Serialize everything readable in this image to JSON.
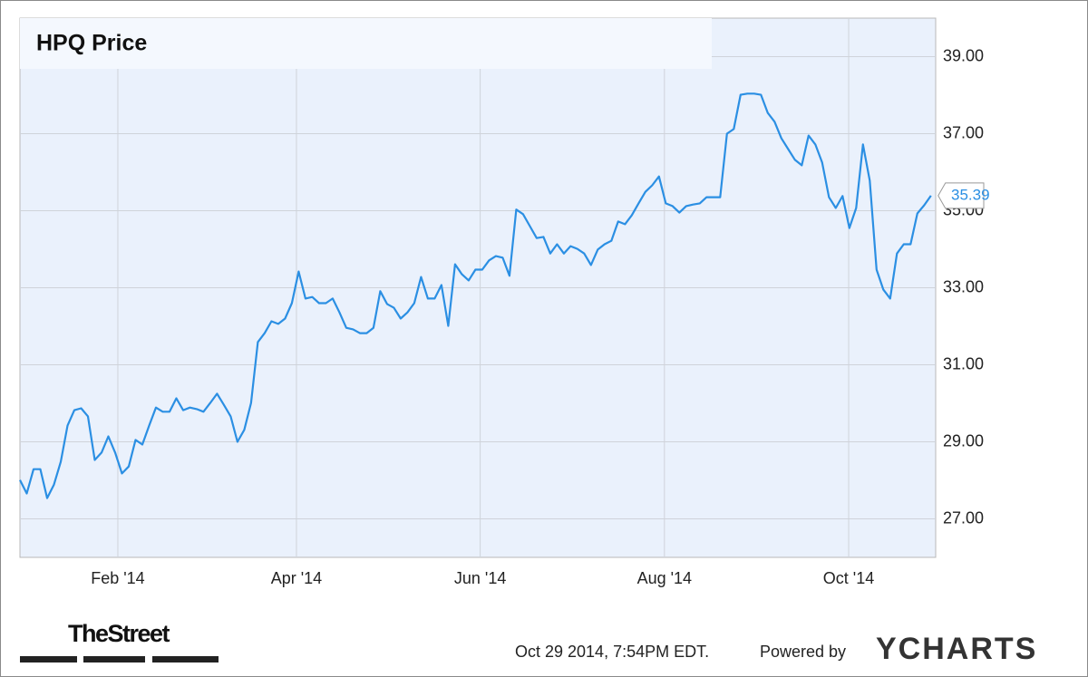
{
  "chart_data": {
    "type": "line",
    "title": "HPQ Price",
    "series": [
      {
        "name": "HPQ",
        "color": "#2b8fe3",
        "values": [
          28.01,
          27.66,
          28.29,
          28.29,
          27.54,
          27.89,
          28.48,
          29.42,
          29.82,
          29.87,
          29.66,
          28.53,
          28.72,
          29.14,
          28.72,
          28.18,
          28.36,
          29.05,
          28.93,
          29.42,
          29.89,
          29.78,
          29.78,
          30.13,
          29.82,
          29.89,
          29.85,
          29.78,
          30.01,
          30.25,
          29.96,
          29.66,
          29.0,
          29.31,
          30.01,
          31.59,
          31.82,
          32.13,
          32.06,
          32.2,
          32.6,
          33.42,
          32.72,
          32.76,
          32.6,
          32.6,
          32.72,
          32.36,
          31.96,
          31.92,
          31.82,
          31.82,
          31.96,
          32.91,
          32.58,
          32.48,
          32.2,
          32.36,
          32.6,
          33.28,
          32.72,
          32.72,
          33.07,
          32.01,
          33.61,
          33.35,
          33.19,
          33.47,
          33.47,
          33.71,
          33.82,
          33.78,
          33.31,
          35.03,
          34.91,
          34.6,
          34.29,
          34.32,
          33.89,
          34.13,
          33.89,
          34.08,
          34.01,
          33.89,
          33.59,
          33.99,
          34.13,
          34.22,
          34.72,
          34.65,
          34.88,
          35.19,
          35.49,
          35.66,
          35.89,
          35.19,
          35.12,
          34.95,
          35.12,
          35.16,
          35.19,
          35.35,
          35.35,
          35.35,
          37.0,
          37.12,
          38.01,
          38.04,
          38.04,
          38.01,
          37.54,
          37.31,
          36.88,
          36.6,
          36.32,
          36.18,
          36.95,
          36.72,
          36.25,
          35.35,
          35.07,
          35.38,
          34.55,
          35.07,
          36.72,
          35.78,
          33.47,
          32.95,
          32.72,
          33.89,
          34.13,
          34.13,
          34.93,
          35.14,
          35.39
        ]
      }
    ],
    "xlim": [
      0,
      134.7
    ],
    "xticks": [
      {
        "value": 14.4,
        "label": "Feb '14"
      },
      {
        "value": 40.67,
        "label": "Apr '14"
      },
      {
        "value": 67.7,
        "label": "Jun '14"
      },
      {
        "value": 94.8,
        "label": "Aug '14"
      },
      {
        "value": 121.9,
        "label": "Oct '14"
      }
    ],
    "ylim": [
      26,
      40
    ],
    "yticks": [
      {
        "value": 27,
        "label": "27.00"
      },
      {
        "value": 29,
        "label": "29.00"
      },
      {
        "value": 31,
        "label": "31.00"
      },
      {
        "value": 33,
        "label": "33.00"
      },
      {
        "value": 35,
        "label": "35.00"
      },
      {
        "value": 37,
        "label": "37.00"
      },
      {
        "value": 39,
        "label": "39.00"
      }
    ],
    "grid": true
  },
  "footer": {
    "source_logo": "TheStreet",
    "timestamp": "Oct 29 2014, 7:54PM EDT.",
    "powered_by": "Powered by",
    "brand": "YCHARTS"
  }
}
